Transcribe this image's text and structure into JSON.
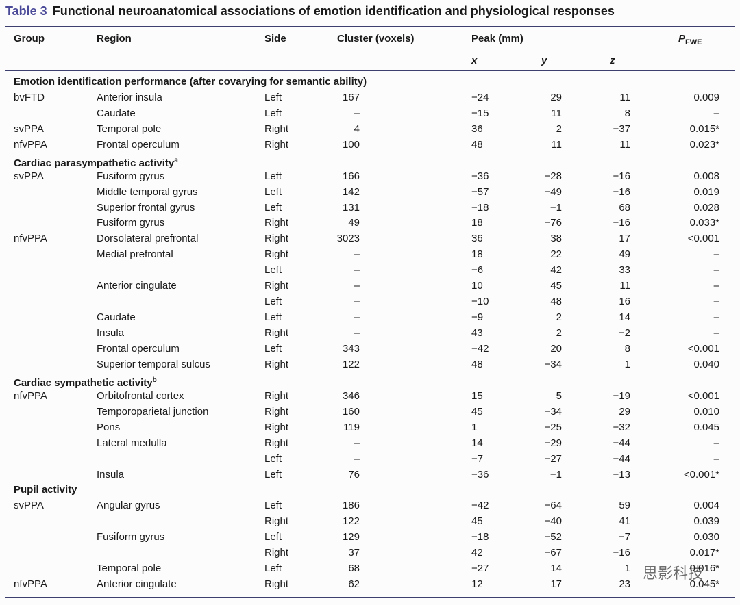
{
  "title": {
    "label": "Table 3",
    "text": "Functional neuroanatomical associations of emotion identification and physiological responses"
  },
  "table": {
    "header": {
      "group": "Group",
      "region": "Region",
      "side": "Side",
      "cluster": "Cluster (voxels)",
      "peak": "Peak (mm)",
      "p": "P",
      "p_sub": "FWE"
    },
    "subheader": [
      "x",
      "y",
      "z"
    ],
    "sections": [
      {
        "title": "Emotion identification performance (after covarying for semantic ability)",
        "sup": null,
        "rows": [
          [
            "bvFTD",
            "Anterior insula",
            "Left",
            "167",
            "−24",
            "29",
            "11",
            "0.009"
          ],
          [
            null,
            "Caudate",
            "Left",
            "–",
            "−15",
            "11",
            "8",
            "–"
          ],
          [
            "svPPA",
            "Temporal pole",
            "Right",
            "4",
            "36",
            "2",
            "−37",
            "0.015*"
          ],
          [
            "nfvPPA",
            "Frontal operculum",
            "Right",
            "100",
            "48",
            "11",
            "11",
            "0.023*"
          ]
        ]
      },
      {
        "title": "Cardiac parasympathetic activity",
        "sup": "a",
        "rows": [
          [
            "svPPA",
            "Fusiform gyrus",
            "Left",
            "166",
            "−36",
            "−28",
            "−16",
            "0.008"
          ],
          [
            null,
            "Middle temporal gyrus",
            "Left",
            "142",
            "−57",
            "−49",
            "−16",
            "0.019"
          ],
          [
            null,
            "Superior frontal gyrus",
            "Left",
            "131",
            "−18",
            "−1",
            "68",
            "0.028"
          ],
          [
            null,
            "Fusiform gyrus",
            "Right",
            "49",
            "18",
            "−76",
            "−16",
            "0.033*"
          ],
          [
            "nfvPPA",
            "Dorsolateral prefrontal",
            "Right",
            "3023",
            "36",
            "38",
            "17",
            "<0.001"
          ],
          [
            null,
            "Medial prefrontal",
            "Right",
            "–",
            "18",
            "22",
            "49",
            "–"
          ],
          [
            null,
            null,
            "Left",
            "–",
            "−6",
            "42",
            "33",
            "–"
          ],
          [
            null,
            "Anterior cingulate",
            "Right",
            "–",
            "10",
            "45",
            "11",
            "–"
          ],
          [
            null,
            null,
            "Left",
            "–",
            "−10",
            "48",
            "16",
            "–"
          ],
          [
            null,
            "Caudate",
            "Left",
            "–",
            "−9",
            "2",
            "14",
            "–"
          ],
          [
            null,
            "Insula",
            "Right",
            "–",
            "43",
            "2",
            "−2",
            "–"
          ],
          [
            null,
            "Frontal operculum",
            "Left",
            "343",
            "−42",
            "20",
            "8",
            "<0.001"
          ],
          [
            null,
            "Superior temporal sulcus",
            "Right",
            "122",
            "48",
            "−34",
            "1",
            "0.040"
          ]
        ]
      },
      {
        "title": "Cardiac sympathetic activity",
        "sup": "b",
        "rows": [
          [
            "nfvPPA",
            "Orbitofrontal cortex",
            "Right",
            "346",
            "15",
            "5",
            "−19",
            "<0.001"
          ],
          [
            null,
            "Temporoparietal junction",
            "Right",
            "160",
            "45",
            "−34",
            "29",
            "0.010"
          ],
          [
            null,
            "Pons",
            "Right",
            "119",
            "1",
            "−25",
            "−32",
            "0.045"
          ],
          [
            null,
            "Lateral medulla",
            "Right",
            "–",
            "14",
            "−29",
            "−44",
            "–"
          ],
          [
            null,
            null,
            "Left",
            "–",
            "−7",
            "−27",
            "−44",
            "–"
          ],
          [
            null,
            "Insula",
            "Left",
            "76",
            "−36",
            "−1",
            "−13",
            "<0.001*"
          ]
        ]
      },
      {
        "title": "Pupil activity",
        "sup": null,
        "rows": [
          [
            "svPPA",
            "Angular gyrus",
            "Left",
            "186",
            "−42",
            "−64",
            "59",
            "0.004"
          ],
          [
            null,
            null,
            "Right",
            "122",
            "45",
            "−40",
            "41",
            "0.039"
          ],
          [
            null,
            "Fusiform gyrus",
            "Left",
            "129",
            "−18",
            "−52",
            "−7",
            "0.030"
          ],
          [
            null,
            null,
            "Right",
            "37",
            "42",
            "−67",
            "−16",
            "0.017*"
          ],
          [
            null,
            "Temporal pole",
            "Left",
            "68",
            "−27",
            "14",
            "1",
            "0.016*"
          ],
          [
            "nfvPPA",
            "Anterior cingulate",
            "Right",
            "62",
            "12",
            "17",
            "23",
            "0.045*"
          ]
        ]
      }
    ]
  },
  "watermark": "思影科技"
}
